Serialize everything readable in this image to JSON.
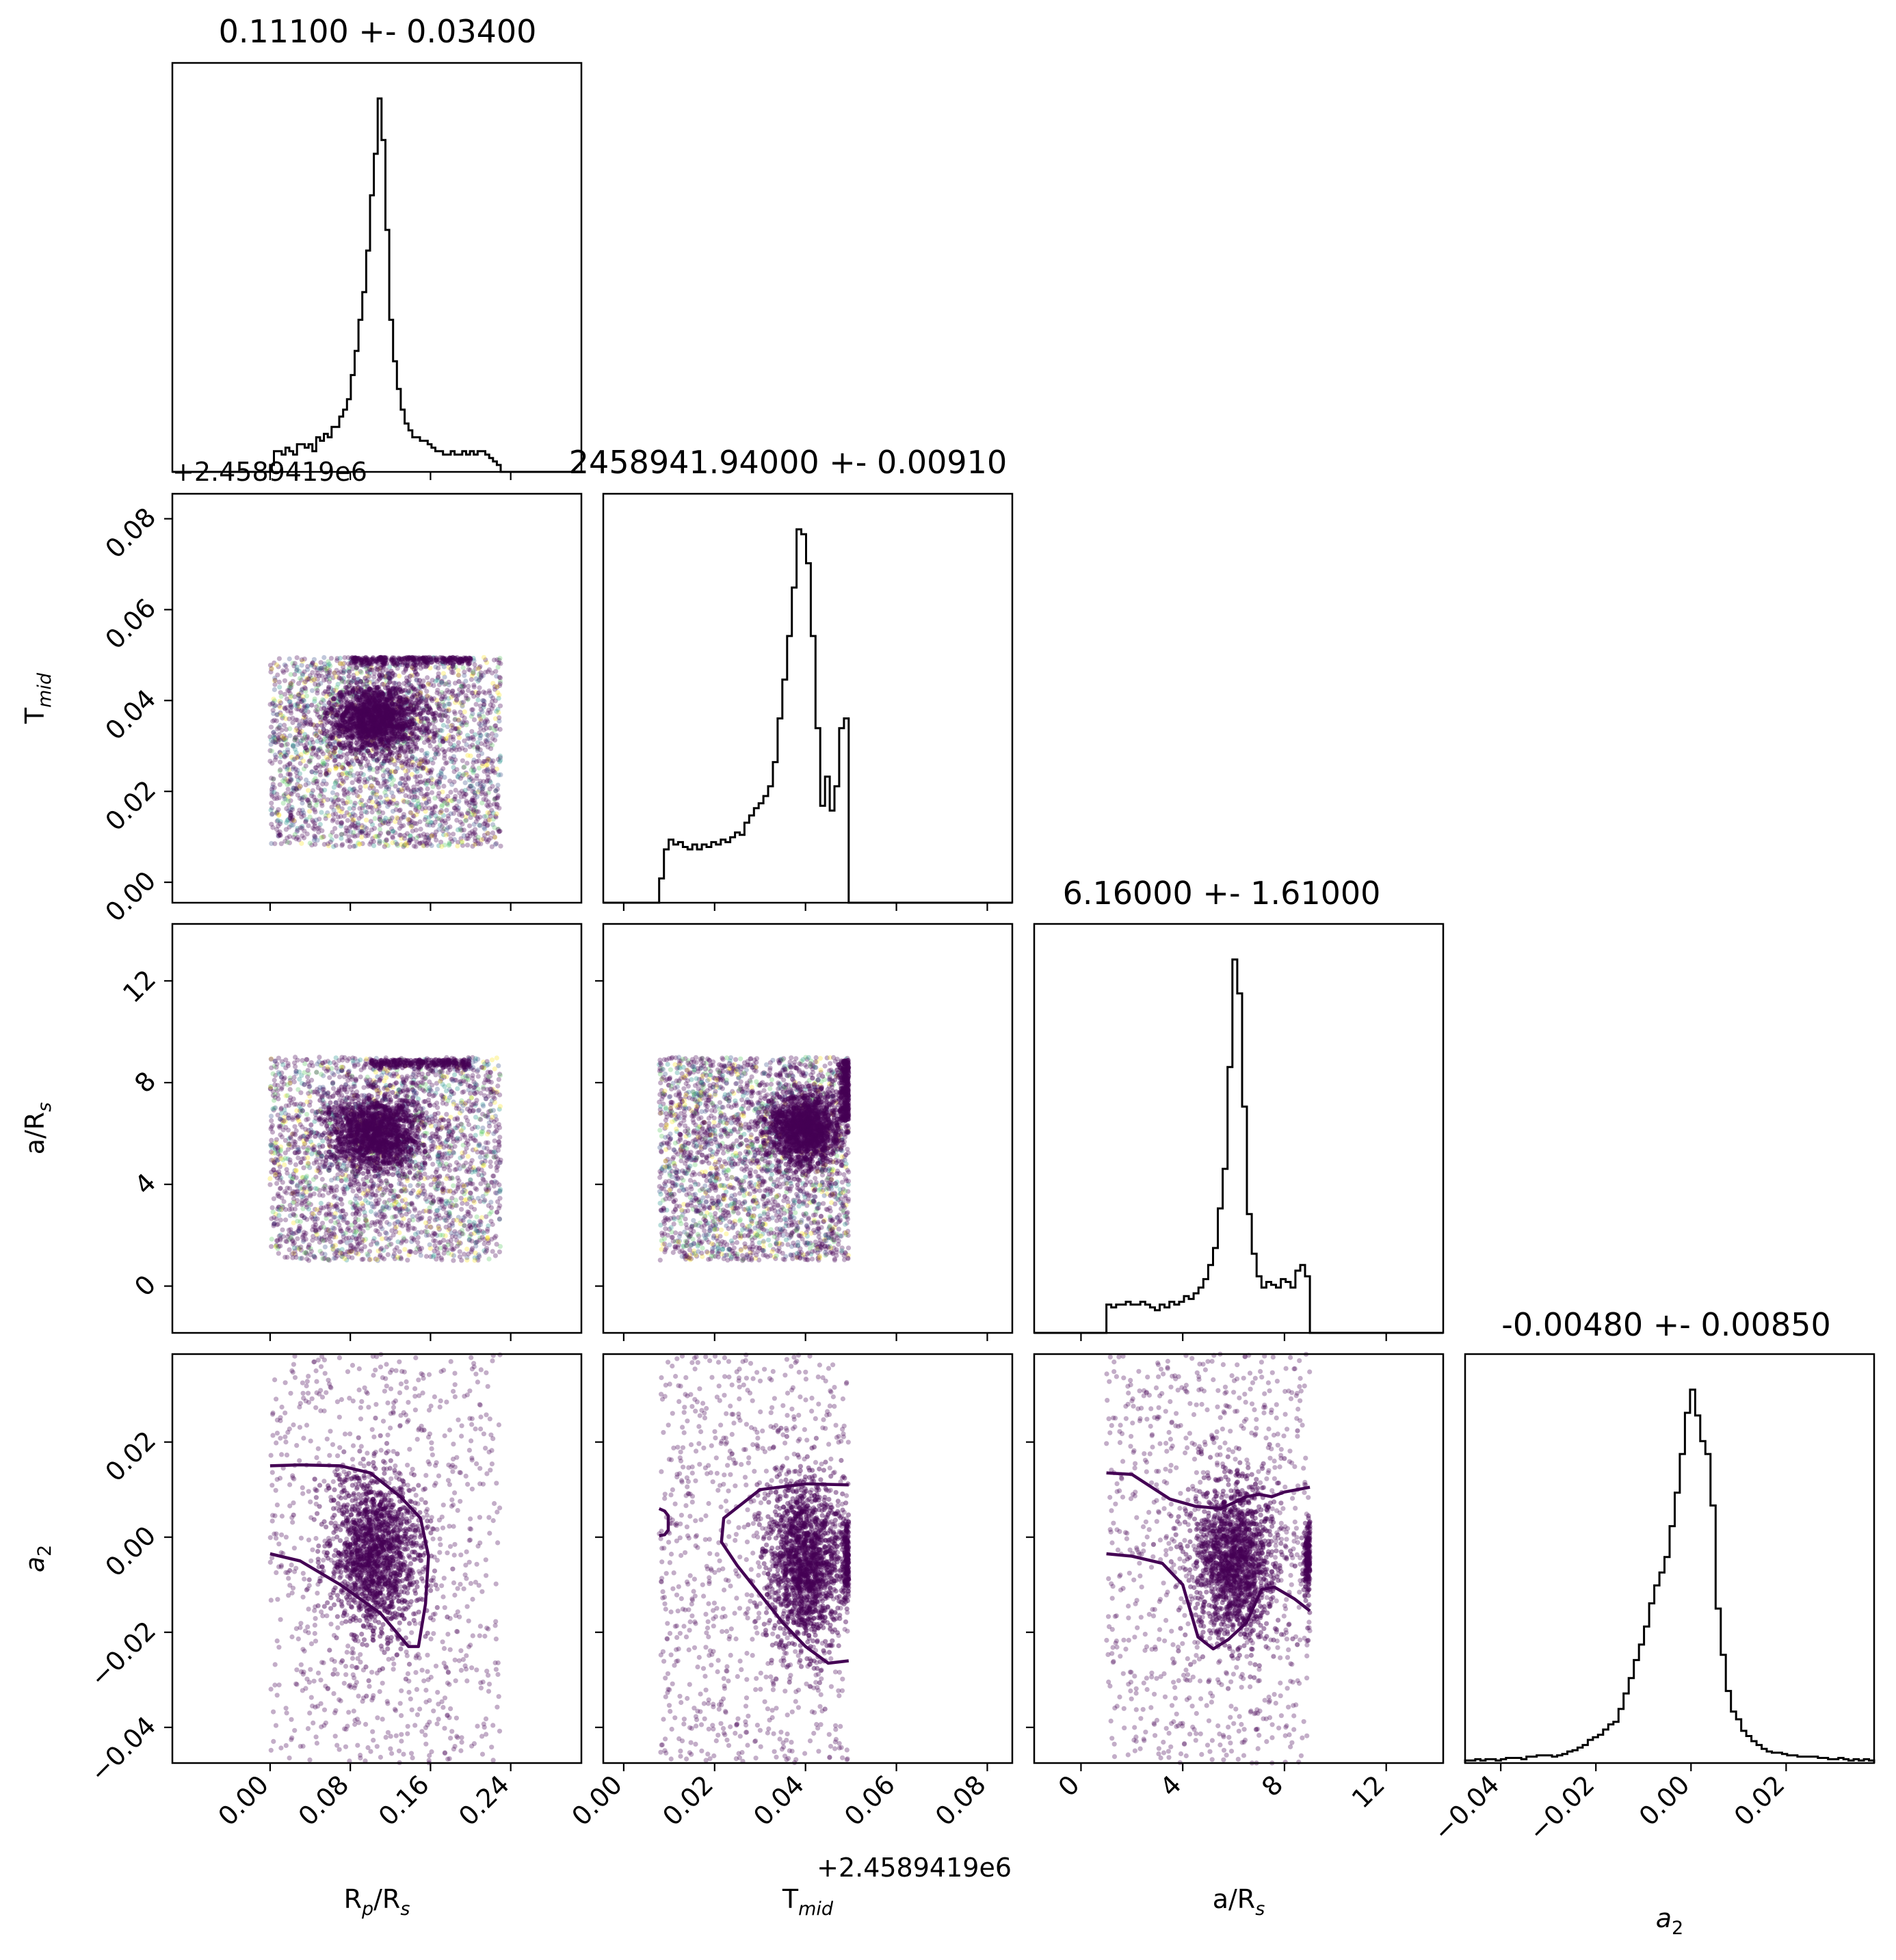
{
  "figure": {
    "panel_titles": [
      "0.11100 +- 0.03400",
      "2458941.94000 +- 0.00910",
      "6.16000 +- 1.61000",
      "-0.00480 +- 0.00850"
    ],
    "offset_label_y": "+2.4589419e6",
    "offset_label_x": "+2.4589419e6"
  },
  "chart_data": {
    "type": "corner",
    "parameters": [
      {
        "label": "R",
        "sub1": "p",
        "mid": "/R",
        "sub2": "s",
        "range": [
          -0.0975,
          0.3105
        ],
        "ticks": [
          0.0,
          0.08,
          0.16,
          0.24
        ],
        "tick_labels": [
          "0.00",
          "0.08",
          "0.16",
          "0.24"
        ]
      },
      {
        "label": "T",
        "sub1": "mid",
        "mid": "",
        "sub2": "",
        "range": [
          -0.0045,
          0.0855
        ],
        "ticks": [
          0.0,
          0.02,
          0.04,
          0.06,
          0.08
        ],
        "tick_labels": [
          "0.00",
          "0.02",
          "0.04",
          "0.06",
          "0.08"
        ]
      },
      {
        "label": "a/R",
        "sub1": "s",
        "mid": "",
        "sub2": "",
        "range": [
          -1.84,
          14.24
        ],
        "ticks": [
          0,
          4,
          8,
          12
        ],
        "tick_labels": [
          "0",
          "4",
          "8",
          "12"
        ]
      },
      {
        "label": "a",
        "sub1": "2",
        "mid": "",
        "sub2": "",
        "range": [
          -0.0475,
          0.0385
        ],
        "ticks": [
          -0.04,
          -0.02,
          0.0,
          0.02
        ],
        "tick_labels": [
          "−0.04",
          "−0.02",
          "0.00",
          "0.02"
        ]
      }
    ],
    "histograms": [
      {
        "parameter": "R_p/R_s",
        "edges": [
          0.0,
          0.23
        ],
        "counts": [
          2,
          6,
          6,
          5,
          7,
          6,
          5,
          8,
          8,
          7,
          8,
          6,
          10,
          9,
          11,
          10,
          13,
          13,
          16,
          18,
          21,
          28,
          35,
          44,
          52,
          64,
          80,
          92,
          108,
          96,
          70,
          44,
          32,
          24,
          18,
          14,
          12,
          10,
          10,
          9,
          9,
          8,
          7,
          6,
          6,
          5,
          5,
          6,
          5,
          5,
          6,
          5,
          6,
          5,
          6,
          6,
          5,
          4,
          3,
          2
        ]
      },
      {
        "parameter": "T_mid",
        "edges": [
          0.0078,
          0.0495
        ],
        "counts": [
          10,
          22,
          26,
          24,
          25,
          23,
          22,
          24,
          22,
          24,
          23,
          25,
          24,
          26,
          25,
          27,
          29,
          28,
          33,
          36,
          39,
          41,
          44,
          48,
          58,
          76,
          92,
          110,
          130,
          154,
          152,
          140,
          110,
          72,
          40,
          52,
          38,
          48,
          72,
          76
        ]
      },
      {
        "parameter": "a/R_s",
        "edges": [
          1.0,
          9.0
        ],
        "counts": [
          10,
          9,
          10,
          10,
          11,
          10,
          10,
          11,
          10,
          9,
          8,
          10,
          9,
          11,
          10,
          11,
          13,
          12,
          14,
          16,
          19,
          24,
          30,
          44,
          58,
          94,
          132,
          120,
          80,
          42,
          28,
          20,
          16,
          18,
          17,
          16,
          19,
          18,
          16,
          22,
          24,
          20
        ]
      },
      {
        "parameter": "a_2",
        "edges": [
          -0.0475,
          0.0385
        ],
        "counts": [
          2,
          2,
          3,
          2,
          3,
          3,
          2,
          3,
          4,
          4,
          4,
          3,
          5,
          5,
          6,
          6,
          6,
          5,
          6,
          7,
          9,
          10,
          12,
          14,
          18,
          20,
          22,
          26,
          30,
          32,
          42,
          54,
          66,
          80,
          92,
          106,
          124,
          138,
          148,
          160,
          184,
          210,
          240,
          272,
          290,
          270,
          250,
          240,
          200,
          120,
          84,
          56,
          40,
          34,
          25,
          21,
          17,
          14,
          11,
          9,
          8,
          8,
          7,
          6,
          6,
          5,
          5,
          5,
          5,
          4,
          4,
          3,
          3,
          4,
          3,
          2,
          3,
          2,
          3,
          2
        ]
      }
    ],
    "scatter": [
      {
        "x": "R_p/R_s",
        "y": "T_mid",
        "x_range": [
          0.0,
          0.23
        ],
        "y_range": [
          0.0078,
          0.0495
        ],
        "peak": [
          0.105,
          0.036
        ]
      },
      {
        "x": "R_p/R_s",
        "y": "a/R_s",
        "x_range": [
          0.0,
          0.23
        ],
        "y_range": [
          1.0,
          9.0
        ],
        "peak": [
          0.105,
          6.0
        ]
      },
      {
        "x": "T_mid",
        "y": "a/R_s",
        "x_range": [
          0.0078,
          0.0495
        ],
        "y_range": [
          1.0,
          9.0
        ],
        "peak": [
          0.04,
          6.2
        ]
      },
      {
        "x": "R_p/R_s",
        "y": "a_2",
        "x_range": [
          0.0,
          0.23
        ],
        "y_range": [
          -0.0475,
          0.0385
        ],
        "peak": [
          0.105,
          -0.004
        ]
      },
      {
        "x": "T_mid",
        "y": "a_2",
        "x_range": [
          0.0078,
          0.0495
        ],
        "y_range": [
          -0.0475,
          0.0385
        ],
        "peak": [
          0.04,
          -0.005
        ]
      },
      {
        "x": "a/R_s",
        "y": "a_2",
        "x_range": [
          1.0,
          9.0
        ],
        "y_range": [
          -0.0475,
          0.0385
        ],
        "peak": [
          6.0,
          -0.005
        ]
      }
    ],
    "contours": [
      {
        "x": "R_p/R_s",
        "y": "a_2",
        "points": [
          [
            0.0,
            0.015
          ],
          [
            0.03,
            0.0152
          ],
          [
            0.07,
            0.015
          ],
          [
            0.1,
            0.0135
          ],
          [
            0.13,
            0.0085
          ],
          [
            0.15,
            0.004
          ],
          [
            0.158,
            -0.004
          ],
          [
            0.155,
            -0.014
          ],
          [
            0.148,
            -0.023
          ],
          [
            0.138,
            -0.023
          ],
          [
            0.11,
            -0.016
          ],
          [
            0.07,
            -0.01
          ],
          [
            0.03,
            -0.005
          ],
          [
            0.0,
            -0.0035
          ]
        ],
        "closed": false
      },
      {
        "x": "T_mid",
        "y": "a_2",
        "points": [
          [
            0.0495,
            0.011
          ],
          [
            0.04,
            0.0112
          ],
          [
            0.03,
            0.01
          ],
          [
            0.022,
            0.004
          ],
          [
            0.0215,
            -0.001
          ],
          [
            0.025,
            -0.006
          ],
          [
            0.03,
            -0.012
          ],
          [
            0.035,
            -0.018
          ],
          [
            0.04,
            -0.023
          ],
          [
            0.045,
            -0.0265
          ],
          [
            0.0495,
            -0.026
          ]
        ],
        "closed": false
      },
      {
        "x": "T_mid",
        "y": "a_2",
        "points": [
          [
            0.0078,
            0.006
          ],
          [
            0.009,
            0.0055
          ],
          [
            0.0098,
            0.0045
          ],
          [
            0.0098,
            0.0015
          ],
          [
            0.009,
            0.0005
          ],
          [
            0.0078,
            0.0003
          ]
        ],
        "closed": false
      },
      {
        "x": "a/R_s",
        "y": "a_2",
        "points": [
          [
            1.0,
            0.0135
          ],
          [
            2.0,
            0.0132
          ],
          [
            3.5,
            0.008
          ],
          [
            4.5,
            0.0065
          ],
          [
            5.5,
            0.006
          ],
          [
            6.5,
            0.0085
          ],
          [
            7.0,
            0.009
          ],
          [
            7.5,
            0.0085
          ],
          [
            8.0,
            0.0095
          ],
          [
            9.0,
            0.0105
          ]
        ],
        "closed": false
      },
      {
        "x": "a/R_s",
        "y": "a_2",
        "points": [
          [
            1.0,
            -0.0035
          ],
          [
            2.0,
            -0.004
          ],
          [
            3.2,
            -0.0055
          ],
          [
            4.0,
            -0.01
          ],
          [
            4.6,
            -0.021
          ],
          [
            5.2,
            -0.0235
          ],
          [
            5.8,
            -0.0215
          ],
          [
            6.5,
            -0.018
          ],
          [
            7.1,
            -0.011
          ],
          [
            7.6,
            -0.0105
          ],
          [
            8.4,
            -0.013
          ],
          [
            9.0,
            -0.0155
          ]
        ],
        "closed": false
      }
    ],
    "colors": {
      "point_main": "#440154",
      "point_accents": [
        "#21918c",
        "#3b528b",
        "#5ec962",
        "#fde725"
      ],
      "line": "#000000",
      "contour": "#440154"
    }
  }
}
